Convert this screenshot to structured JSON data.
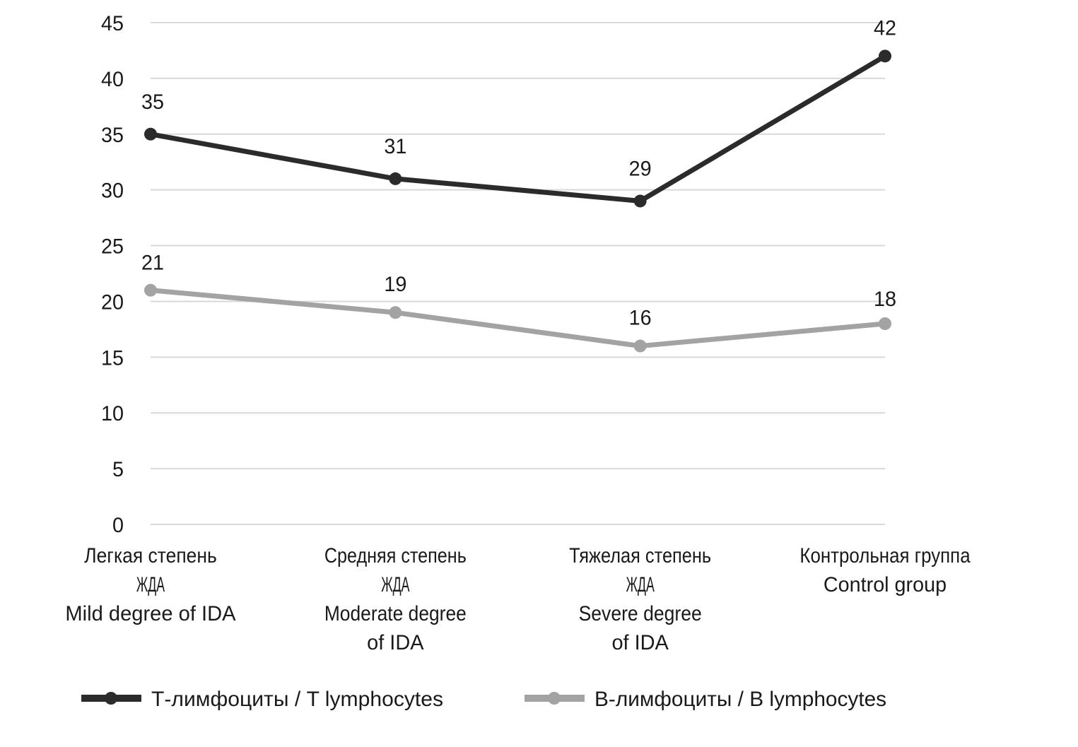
{
  "chart_data": {
    "type": "line",
    "title": "",
    "xlabel": "",
    "ylabel": "",
    "ylim": [
      0,
      45
    ],
    "yticks": [
      0,
      5,
      10,
      15,
      20,
      25,
      30,
      35,
      40,
      45
    ],
    "grid": true,
    "legend_position": "bottom",
    "categories": [
      [
        "Легкая степень",
        "ЖДА",
        "Mild degree of IDA"
      ],
      [
        "Средняя степень",
        "ЖДА",
        "Moderate degree",
        "of IDA"
      ],
      [
        "Тяжелая степень",
        "ЖДА",
        "Severe degree",
        "of IDA"
      ],
      [
        "Контрольная группа",
        "Control group"
      ]
    ],
    "series": [
      {
        "name": "Т-лимфоциты / T lymphocytes",
        "values": [
          35,
          31,
          29,
          42
        ],
        "color": "#2b2b2b"
      },
      {
        "name": "В-лимфоциты / B lymphocytes",
        "values": [
          21,
          19,
          16,
          18
        ],
        "color": "#a3a3a3"
      }
    ]
  }
}
